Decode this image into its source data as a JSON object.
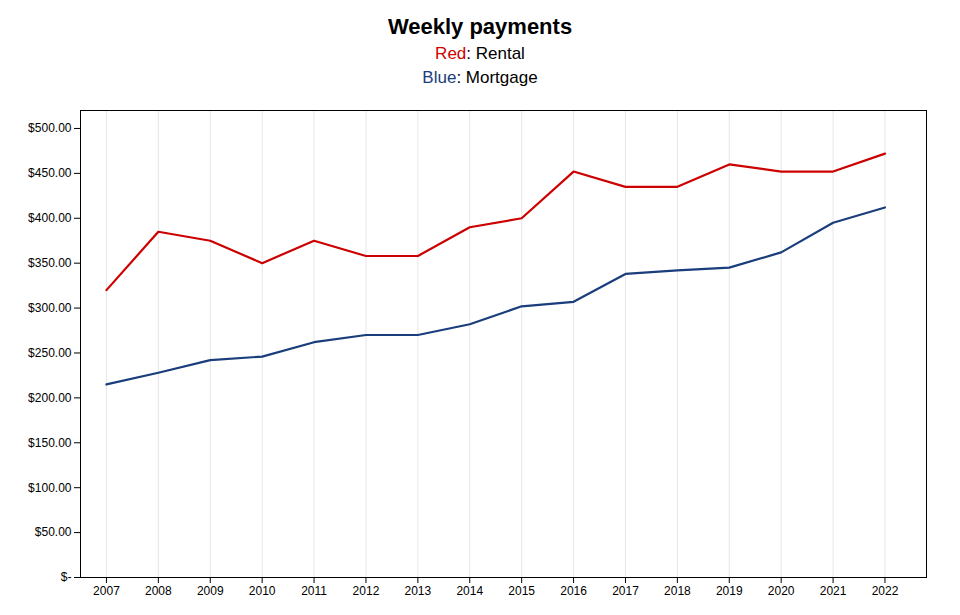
{
  "chart_data": {
    "type": "line",
    "title": "Weekly payments",
    "x": [
      2007,
      2008,
      2009,
      2010,
      2011,
      2012,
      2013,
      2014,
      2015,
      2016,
      2017,
      2018,
      2019,
      2020,
      2021,
      2022
    ],
    "series": [
      {
        "name": "Red: Rental",
        "color": "#cc0000",
        "values": [
          320,
          385,
          375,
          350,
          375,
          358,
          358,
          390,
          400,
          452,
          435,
          435,
          460,
          452,
          452,
          472
        ]
      },
      {
        "name": "Blue: Mortgage",
        "color": "#1a3d7c",
        "values": [
          215,
          228,
          242,
          246,
          262,
          270,
          270,
          282,
          302,
          307,
          338,
          342,
          345,
          362,
          395,
          412
        ]
      }
    ],
    "xlim": [
      2006.5,
      2022.8
    ],
    "xticks": [
      2007,
      2008,
      2009,
      2010,
      2011,
      2012,
      2013,
      2014,
      2015,
      2016,
      2017,
      2018,
      2019,
      2020,
      2021,
      2022
    ],
    "ylim": [
      0,
      520
    ],
    "yticks": [
      {
        "value": 0,
        "label": "$-"
      },
      {
        "value": 50,
        "label": "$50.00"
      },
      {
        "value": 100,
        "label": "$100.00"
      },
      {
        "value": 150,
        "label": "$150.00"
      },
      {
        "value": 200,
        "label": "$200.00"
      },
      {
        "value": 250,
        "label": "$250.00"
      },
      {
        "value": 300,
        "label": "$300.00"
      },
      {
        "value": 350,
        "label": "$350.00"
      },
      {
        "value": 400,
        "label": "$400.00"
      },
      {
        "value": 450,
        "label": "$450.00"
      },
      {
        "value": 500,
        "label": "$500.00"
      }
    ],
    "grid": "x"
  }
}
